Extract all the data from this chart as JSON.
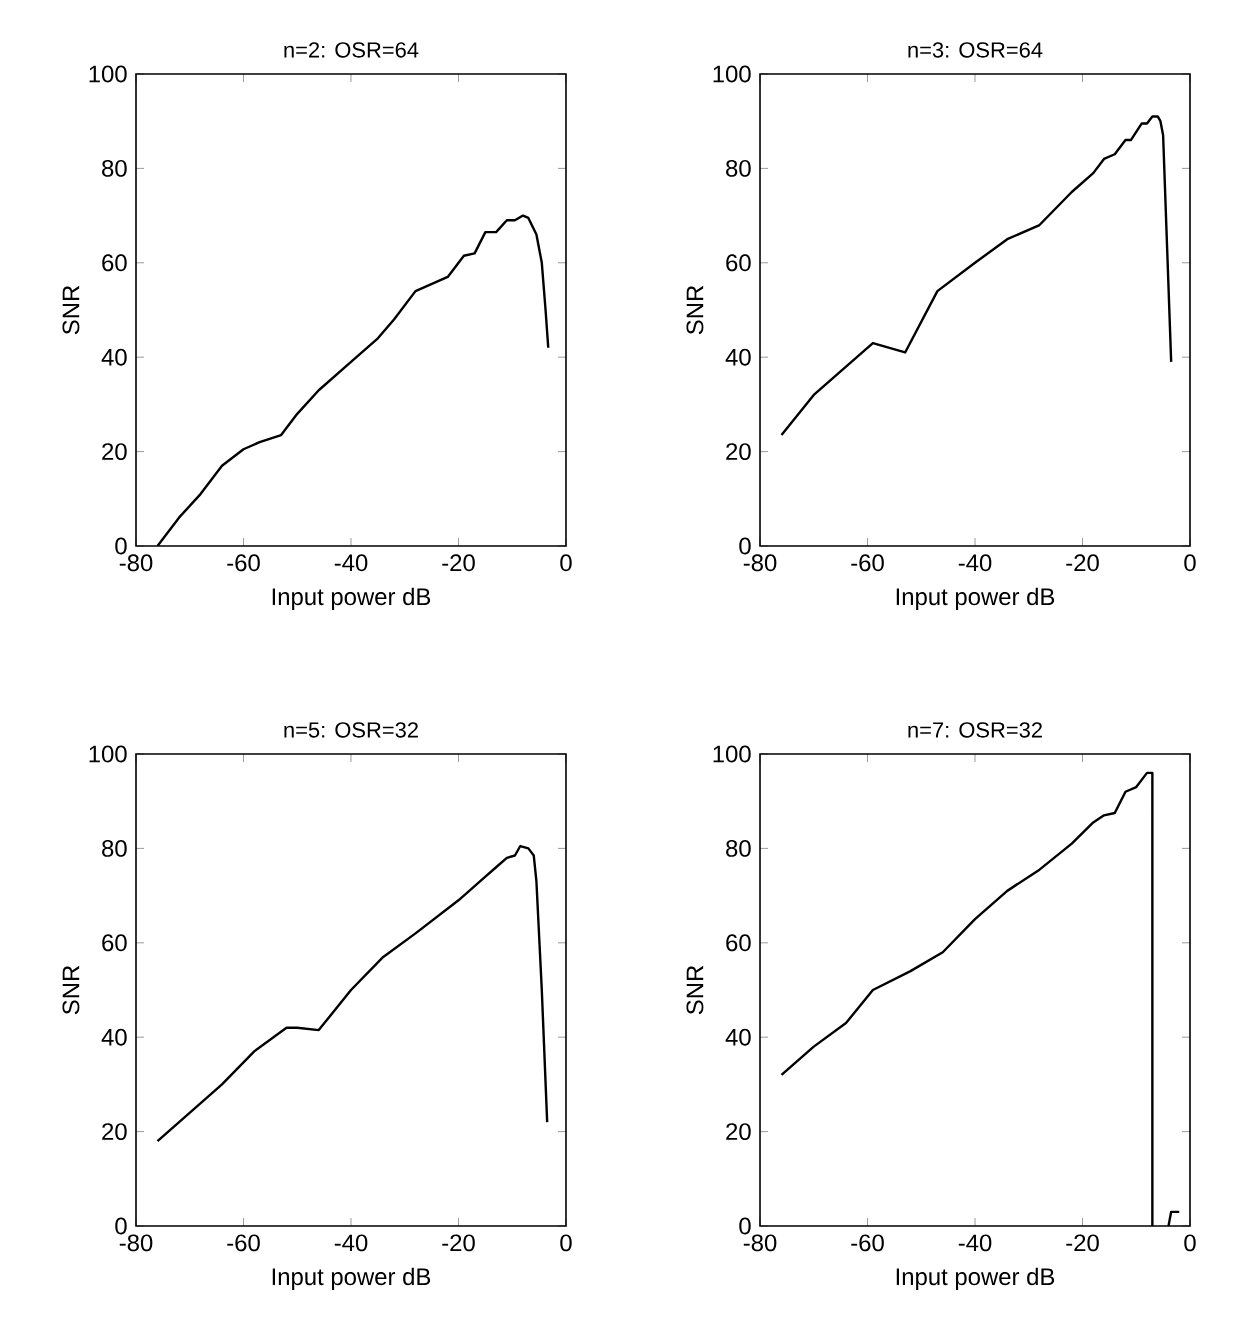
{
  "chart_data": [
    {
      "type": "line",
      "title": "n=2: OSR=64",
      "xlabel": "Input power dB",
      "ylabel": "SNR",
      "color": "#000000",
      "xlim": [
        -80,
        0
      ],
      "ylim": [
        0,
        100
      ],
      "xticks": [
        -80,
        -60,
        -40,
        -20,
        0
      ],
      "yticks": [
        0,
        20,
        40,
        60,
        80,
        100
      ],
      "x": [
        -76,
        -72,
        -68,
        -64,
        -60,
        -57,
        -53,
        -50,
        -46,
        -40,
        -35,
        -32,
        -28,
        -24,
        -22,
        -19,
        -17,
        -15,
        -13,
        -11,
        -9.5,
        -8,
        -7,
        -5.5,
        -4.5,
        -3.8,
        -3.3
      ],
      "values": [
        0,
        6,
        11,
        17,
        20.5,
        22,
        23.5,
        28,
        33,
        39,
        44,
        48,
        54,
        56,
        57,
        61.5,
        62,
        66.5,
        66.5,
        69,
        69,
        70,
        69.5,
        66,
        60,
        50,
        42
      ]
    },
    {
      "type": "line",
      "title": "n=3: OSR=64",
      "xlabel": "Input power dB",
      "ylabel": "SNR",
      "color": "#000000",
      "xlim": [
        -80,
        0
      ],
      "ylim": [
        0,
        100
      ],
      "xticks": [
        -80,
        -60,
        -40,
        -20,
        0
      ],
      "yticks": [
        0,
        20,
        40,
        60,
        80,
        100
      ],
      "x": [
        -76,
        -70,
        -64,
        -59,
        -53,
        -47,
        -40,
        -34,
        -28,
        -22,
        -18,
        -16,
        -14,
        -12,
        -11,
        -9,
        -8,
        -7,
        -6,
        -5.5,
        -5,
        -3.5
      ],
      "values": [
        23.5,
        32,
        38,
        43,
        41,
        54,
        60,
        65,
        68,
        75,
        79,
        82,
        83,
        86,
        86,
        89.5,
        89.5,
        91,
        91,
        90,
        87,
        39
      ]
    },
    {
      "type": "line",
      "title": "n=5: OSR=32",
      "xlabel": "Input power dB",
      "ylabel": "SNR",
      "color": "#000000",
      "xlim": [
        -80,
        0
      ],
      "ylim": [
        0,
        100
      ],
      "xticks": [
        -80,
        -60,
        -40,
        -20,
        0
      ],
      "yticks": [
        0,
        20,
        40,
        60,
        80,
        100
      ],
      "x": [
        -76,
        -70,
        -64,
        -58,
        -52,
        -50,
        -46,
        -40,
        -34,
        -28,
        -20,
        -15,
        -13,
        -11,
        -9.5,
        -8.5,
        -7,
        -6,
        -5.5,
        -4.5,
        -3.5
      ],
      "values": [
        18,
        24,
        30,
        37,
        42,
        42,
        41.5,
        50,
        57,
        62,
        69,
        74,
        76,
        78,
        78.5,
        80.5,
        80,
        78.5,
        73,
        50,
        22
      ]
    },
    {
      "type": "line",
      "title": "n=7: OSR=32",
      "xlabel": "Input power dB",
      "ylabel": "SNR",
      "color": "#000000",
      "xlim": [
        -80,
        0
      ],
      "ylim": [
        0,
        100
      ],
      "xticks": [
        -80,
        -60,
        -40,
        -20,
        0
      ],
      "yticks": [
        0,
        20,
        40,
        60,
        80,
        100
      ],
      "x": [
        -76,
        -70,
        -64,
        -59,
        -52,
        -46,
        -40,
        -34,
        -28,
        -22,
        -18,
        -16,
        -14,
        -12,
        -10,
        -8,
        -7,
        -7,
        -5.5,
        -4,
        -3.5,
        -2
      ],
      "values": [
        32,
        38,
        43,
        50,
        54,
        58,
        65,
        71,
        75.5,
        81,
        85.5,
        87,
        87.5,
        92,
        93,
        96,
        96,
        0,
        null,
        0,
        3,
        3
      ]
    }
  ]
}
